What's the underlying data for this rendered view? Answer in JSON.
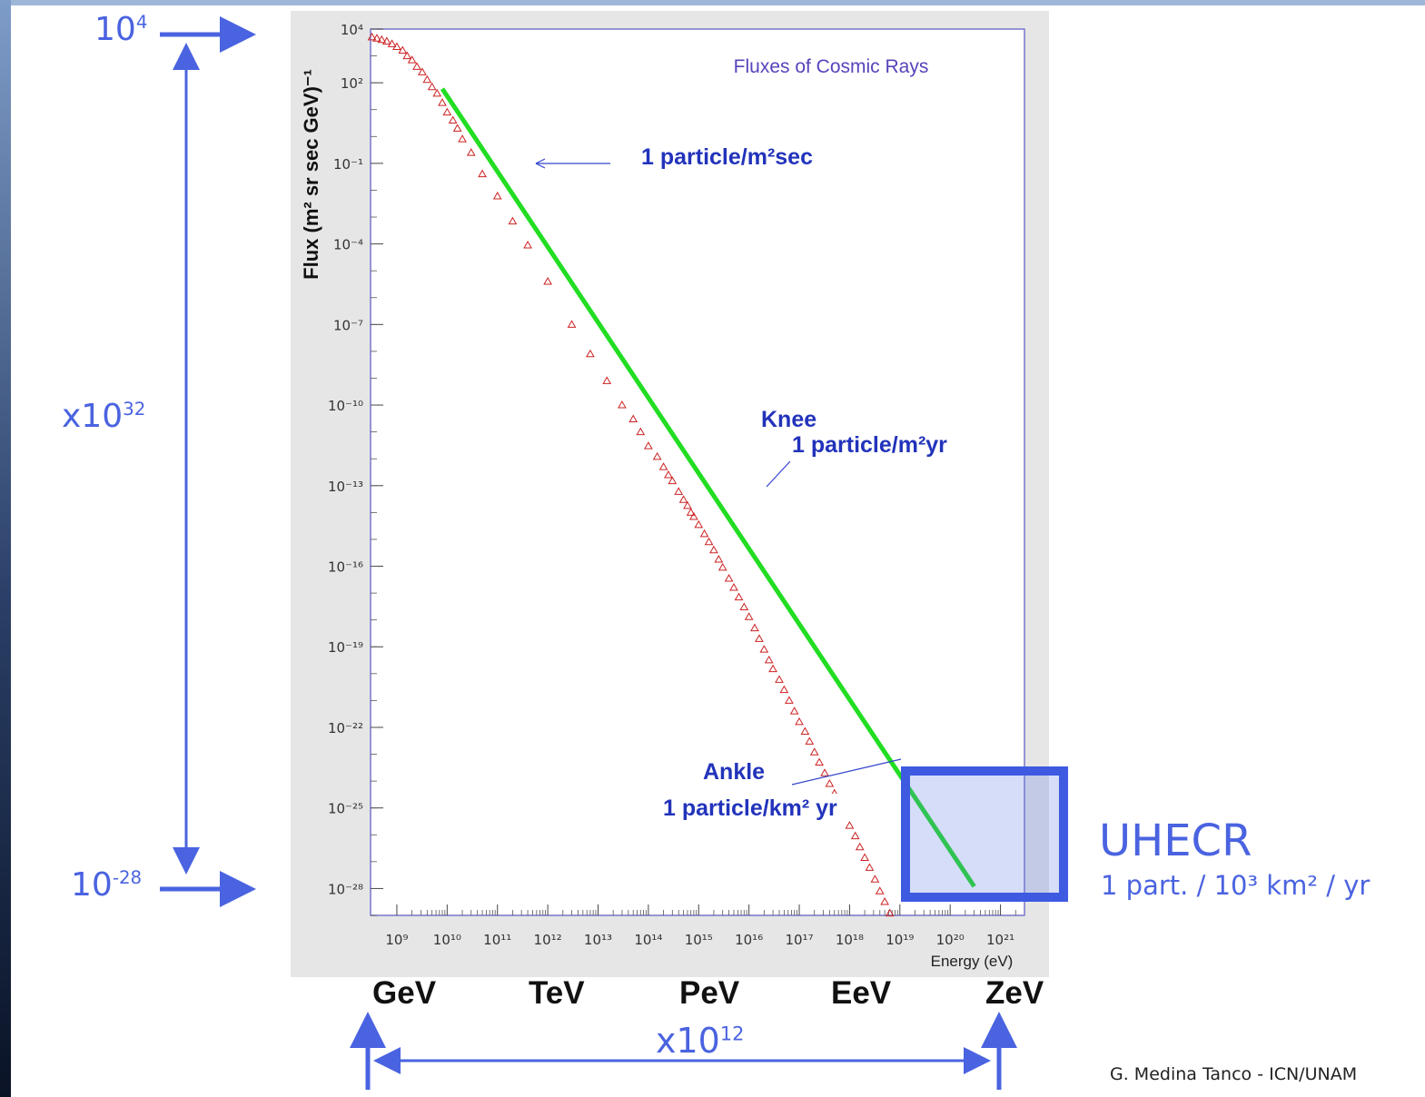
{
  "annotations": {
    "top_flux_base": "10",
    "top_flux_exp": "4",
    "bottom_flux_base": "10",
    "bottom_flux_exp": "-28",
    "flux_span_base": "x10",
    "flux_span_exp": "32",
    "energy_span_base": "x10",
    "energy_span_exp": "12",
    "uhecr_title": "UHECR",
    "uhecr_sub": "1 part. / 10³ km² / yr",
    "credit": "G. Medina Tanco - ICN/UNAM",
    "units": [
      "GeV",
      "TeV",
      "PeV",
      "EeV",
      "ZeV"
    ],
    "colors": {
      "accent": "#4a63e0",
      "fit_line": "#22dd22",
      "data_points": "#cc2222",
      "plot_border": "#7777cc",
      "label_text": "#2233bb"
    }
  },
  "chart_data": {
    "type": "scatter",
    "title": "Fluxes of Cosmic Rays",
    "xlabel": "Energy (eV)",
    "ylabel": "Flux (m² sr sec GeV)⁻¹",
    "x_scale": "log",
    "y_scale": "log",
    "xlim": [
      300000000.0,
      3e+21
    ],
    "ylim": [
      1e-29,
      10000.0
    ],
    "x_ticks": [
      "10⁹",
      "10¹⁰",
      "10¹¹",
      "10¹²",
      "10¹³",
      "10¹⁴",
      "10¹⁵",
      "10¹⁶",
      "10¹⁷",
      "10¹⁸",
      "10¹⁹",
      "10²⁰",
      "10²¹"
    ],
    "x_tick_values": [
      1000000000.0,
      10000000000.0,
      100000000000.0,
      1000000000000.0,
      10000000000000.0,
      100000000000000.0,
      1000000000000000.0,
      1e+16,
      1e+17,
      1e+18,
      1e+19,
      1e+20,
      1e+21
    ],
    "y_ticks": [
      "10⁴",
      "10²",
      "10⁻¹",
      "10⁻⁴",
      "10⁻⁷",
      "10⁻¹⁰",
      "10⁻¹³",
      "10⁻¹⁶",
      "10⁻¹⁹",
      "10⁻²²",
      "10⁻²⁵",
      "10⁻²⁸"
    ],
    "y_tick_values": [
      10000.0,
      100.0,
      0.1,
      0.0001,
      1e-07,
      1e-10,
      1e-13,
      1e-16,
      1e-19,
      1e-22,
      1e-25,
      1e-28
    ],
    "series": [
      {
        "values": [
          [
            320000000.0,
            5000
          ],
          [
            400000000.0,
            4500
          ],
          [
            500000000.0,
            4000
          ],
          [
            630000000.0,
            3500
          ],
          [
            800000000.0,
            2800
          ],
          [
            1000000000.0,
            2200
          ],
          [
            1300000000.0,
            1600
          ],
          [
            1600000000.0,
            1000
          ],
          [
            2000000000.0,
            700
          ],
          [
            2500000000.0,
            400
          ],
          [
            3200000000.0,
            250
          ],
          [
            4000000000.0,
            130
          ],
          [
            5000000000.0,
            70
          ],
          [
            6300000000.0,
            40
          ],
          [
            8000000000.0,
            18
          ],
          [
            10000000000.0,
            8
          ],
          [
            13000000000.0,
            4
          ],
          [
            16000000000.0,
            2
          ],
          [
            20000000000.0,
            0.8
          ],
          [
            30000000000.0,
            0.25
          ],
          [
            50000000000.0,
            0.04
          ],
          [
            100000000000.0,
            0.006
          ],
          [
            200000000000.0,
            0.0007
          ],
          [
            400000000000.0,
            9e-05
          ],
          [
            1000000000000.0,
            4e-06
          ],
          [
            3000000000000.0,
            1e-07
          ],
          [
            7000000000000.0,
            8e-09
          ],
          [
            15000000000000.0,
            8e-10
          ],
          [
            30000000000000.0,
            1e-10
          ],
          [
            50000000000000.0,
            3e-11
          ],
          [
            70000000000000.0,
            1e-11
          ],
          [
            100000000000000.0,
            3e-12
          ],
          [
            150000000000000.0,
            1.2e-12
          ],
          [
            200000000000000.0,
            5e-13
          ],
          [
            250000000000000.0,
            2.5e-13
          ],
          [
            300000000000000.0,
            1.5e-13
          ],
          [
            400000000000000.0,
            6e-14
          ],
          [
            500000000000000.0,
            3e-14
          ],
          [
            600000000000000.0,
            1.8e-14
          ],
          [
            700000000000000.0,
            1e-14
          ],
          [
            800000000000000.0,
            7e-15
          ],
          [
            1000000000000000.0,
            3.5e-15
          ],
          [
            1300000000000000.0,
            1.6e-15
          ],
          [
            1600000000000000.0,
            8e-16
          ],
          [
            2000000000000000.0,
            4e-16
          ],
          [
            2500000000000000.0,
            1.8e-16
          ],
          [
            3000000000000000.0,
            9e-17
          ],
          [
            4000000000000000.0,
            3.5e-17
          ],
          [
            5000000000000000.0,
            1.6e-17
          ],
          [
            6300000000000000.0,
            7e-18
          ],
          [
            8000000000000000.0,
            3e-18
          ],
          [
            1e+16,
            1.3e-18
          ],
          [
            1.3e+16,
            5e-19
          ],
          [
            1.6e+16,
            2e-19
          ],
          [
            2e+16,
            8e-20
          ],
          [
            2.5e+16,
            3.2e-20
          ],
          [
            3e+16,
            1.5e-20
          ],
          [
            4e+16,
            6e-21
          ],
          [
            5e+16,
            2.5e-21
          ],
          [
            6.3e+16,
            1e-21
          ],
          [
            8e+16,
            4e-22
          ],
          [
            1e+17,
            1.6e-22
          ],
          [
            1.3e+17,
            7e-23
          ],
          [
            1.6e+17,
            3e-23
          ],
          [
            2e+17,
            1.2e-23
          ],
          [
            2.5e+17,
            5e-24
          ],
          [
            3.2e+17,
            2e-24
          ],
          [
            4e+17,
            8e-25
          ],
          [
            5e+17,
            3.5e-25
          ],
          [
            6.3e+17,
            1.4e-25
          ],
          [
            8e+17,
            5.5e-26
          ],
          [
            1e+18,
            2.2e-26
          ],
          [
            1.3e+18,
            9e-27
          ],
          [
            1.6e+18,
            3.5e-27
          ],
          [
            2e+18,
            1.4e-27
          ],
          [
            2.5e+18,
            6e-28
          ],
          [
            3.2e+18,
            2.2e-28
          ],
          [
            4e+18,
            8e-29
          ],
          [
            5e+18,
            3.2e-29
          ],
          [
            6.3e+18,
            1.2e-29
          ]
        ]
      },
      {
        "values": [
          [
            8000000000.0,
            60
          ],
          [
            3e+20,
            1.2e-28
          ]
        ]
      }
    ],
    "annotations": [
      {
        "text": "1 particle/m²sec"
      },
      {
        "text": "Knee"
      },
      {
        "text": "1 particle/m²yr"
      },
      {
        "text": "Ankle"
      },
      {
        "text": "1 particle/km² yr"
      }
    ]
  }
}
